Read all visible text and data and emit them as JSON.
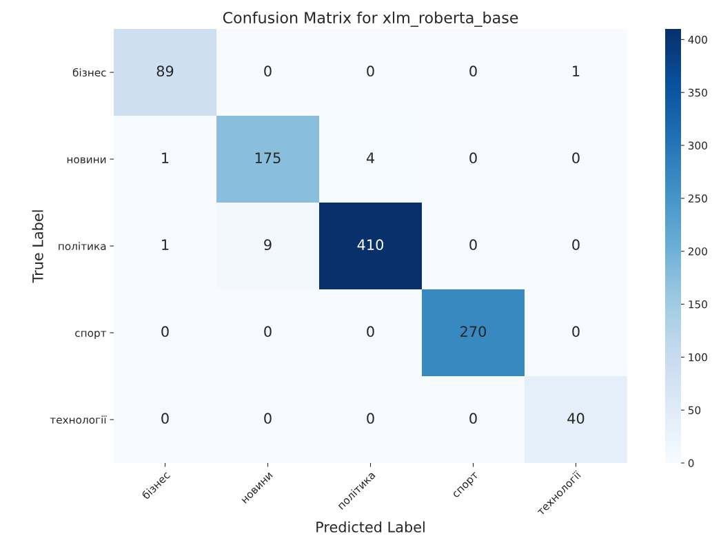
{
  "chart_data": {
    "type": "heatmap",
    "title": "Confusion Matrix for xlm_roberta_base",
    "xlabel": "Predicted Label",
    "ylabel": "True Label",
    "categories": [
      "бізнес",
      "новини",
      "політика",
      "спорт",
      "технології"
    ],
    "y_categories": [
      "бізнес",
      "новини",
      "політика",
      "спорт",
      "технології"
    ],
    "cells": [
      [
        89,
        0,
        0,
        0,
        1
      ],
      [
        1,
        175,
        4,
        0,
        0
      ],
      [
        1,
        9,
        410,
        0,
        0
      ],
      [
        0,
        0,
        0,
        270,
        0
      ],
      [
        0,
        0,
        0,
        0,
        40
      ]
    ],
    "data_labels": true,
    "clim": [
      0,
      410
    ],
    "cticks": [
      0,
      50,
      100,
      150,
      200,
      250,
      300,
      350,
      400
    ]
  }
}
